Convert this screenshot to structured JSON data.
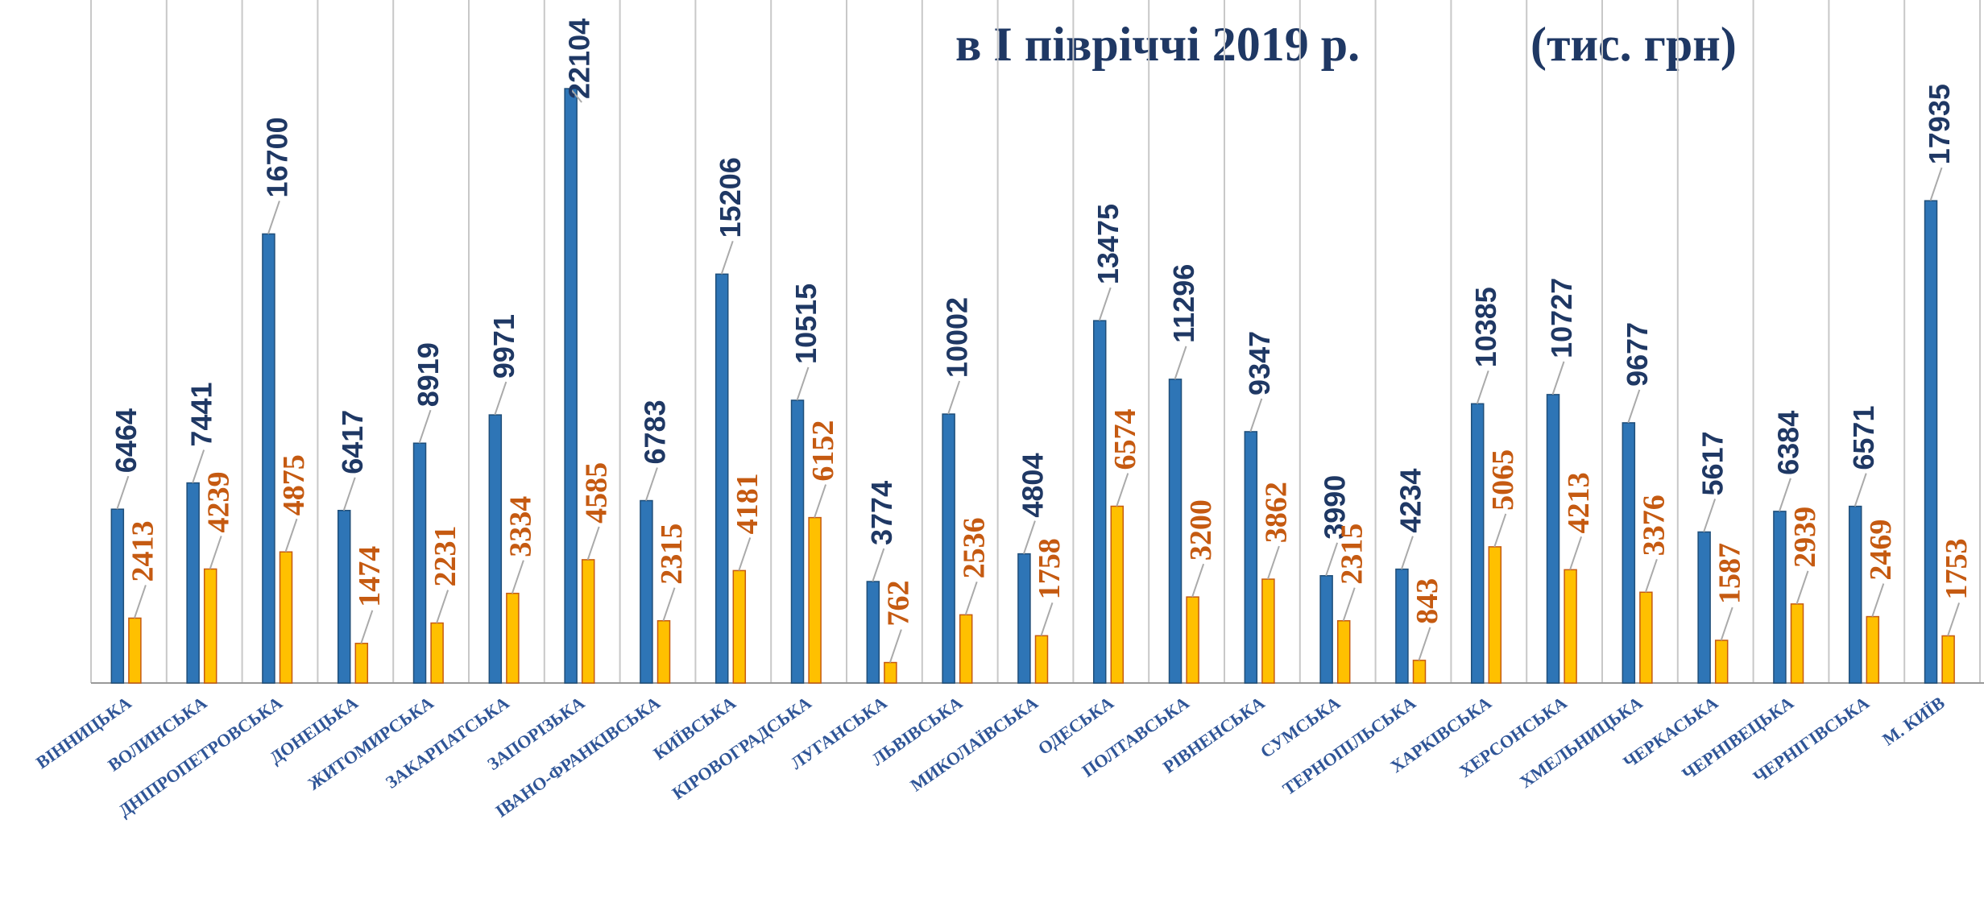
{
  "chart_data": {
    "type": "bar",
    "title": "в І півріччі 2019 р.",
    "subtitle": "(тис. грн)",
    "categories": [
      "ВІННИЦЬКА",
      "ВОЛИНСЬКА",
      "ДНІПРОПЕТРОВСЬКА",
      "ДОНЕЦЬКА",
      "ЖИТОМИРСЬКА",
      "ЗАКАРПАТСЬКА",
      "ЗАПОРІЗЬКА",
      "ІВАНО-ФРАНКІВСЬКА",
      "КИЇВСЬКА",
      "КІРОВОГРАДСЬКА",
      "ЛУГАНСЬКА",
      "ЛЬВІВСЬКА",
      "МИКОЛАЇВСЬКА",
      "ОДЕСЬКА",
      "ПОЛТАВСЬКА",
      "РІВНЕНСЬКА",
      "СУМСЬКА",
      "ТЕРНОПІЛЬСЬКА",
      "ХАРКІВСЬКА",
      "ХЕРСОНСЬКА",
      "ХМЕЛЬНИЦЬКА",
      "ЧЕРКАСЬКА",
      "ЧЕРНІВЕЦЬКА",
      "ЧЕРНІГІВСЬКА",
      "М. КИЇВ"
    ],
    "series": [
      {
        "color": "#2e75b6",
        "values": [
          6464,
          7441,
          16700,
          6417,
          8919,
          9971,
          22104,
          6783,
          15206,
          10515,
          3774,
          10002,
          4804,
          13475,
          11296,
          9347,
          3990,
          4234,
          10385,
          10727,
          9677,
          5617,
          6384,
          6571,
          17935
        ]
      },
      {
        "color": "#ffc000",
        "values": [
          2413,
          4239,
          4875,
          1474,
          2231,
          3334,
          4585,
          2315,
          4181,
          6152,
          762,
          2536,
          1758,
          6574,
          3200,
          3862,
          2315,
          843,
          5065,
          4213,
          3376,
          1587,
          2939,
          2469,
          1753
        ]
      }
    ],
    "ylim": [
      0,
      25400
    ]
  }
}
